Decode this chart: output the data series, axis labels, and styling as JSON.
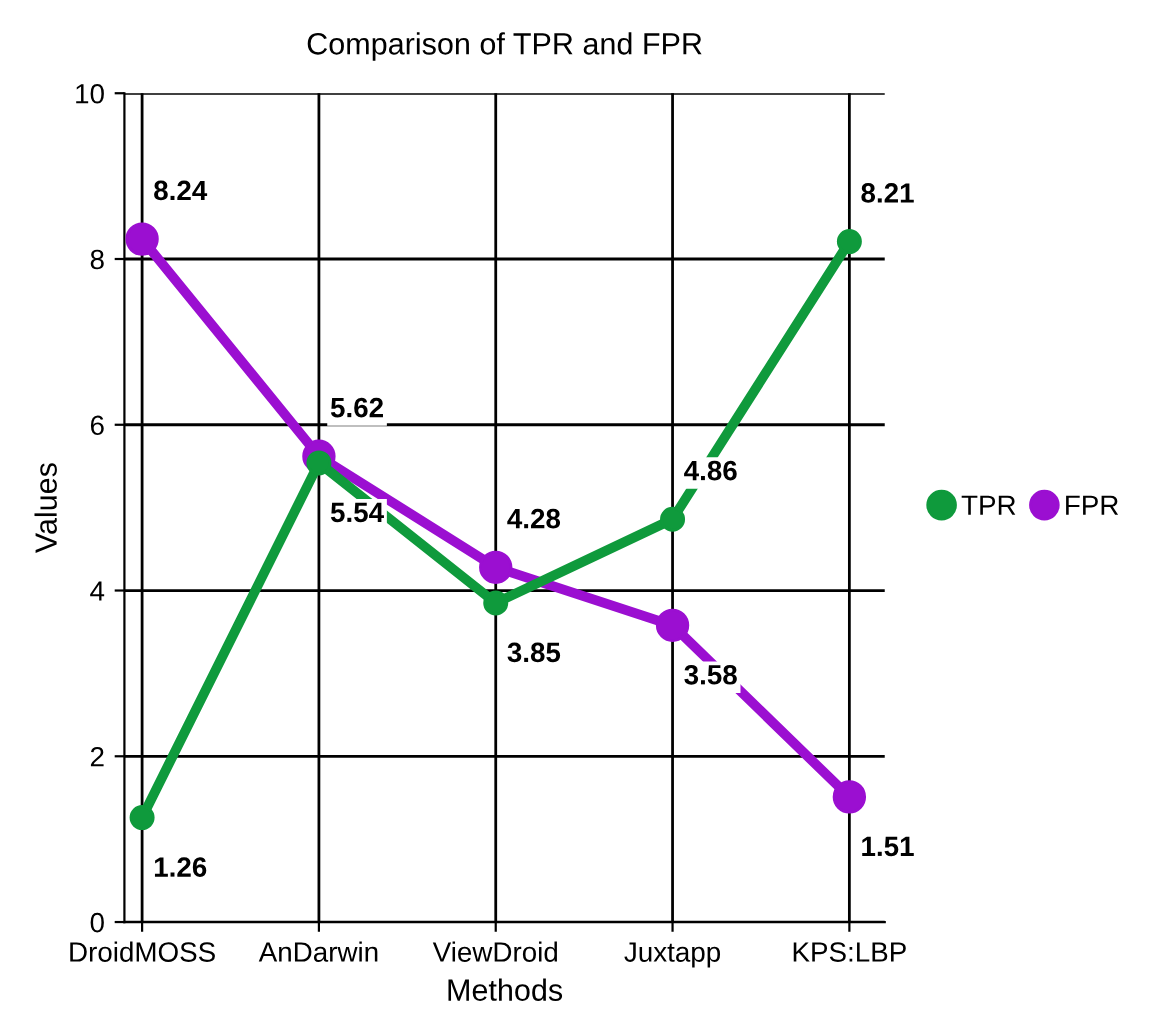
{
  "chart_data": {
    "type": "line",
    "title": "Comparison of TPR and FPR",
    "xlabel": "Methods",
    "ylabel": "Values",
    "categories": [
      "DroidMOSS",
      "AnDarwin",
      "ViewDroid",
      "Juxtapp",
      "KPS:LBP"
    ],
    "series": [
      {
        "name": "TPR",
        "color": "#0f9a3c",
        "values": [
          1.26,
          5.54,
          3.85,
          4.86,
          8.21
        ]
      },
      {
        "name": "FPR",
        "color": "#9b0fd1",
        "values": [
          8.24,
          5.62,
          4.28,
          3.58,
          1.51
        ]
      }
    ],
    "ylim": [
      0,
      10
    ],
    "yticks": [
      0,
      2,
      4,
      6,
      8,
      10
    ],
    "grid": true,
    "legend": "right",
    "marker": "circle",
    "line_style": "solid",
    "data_labels": true
  }
}
